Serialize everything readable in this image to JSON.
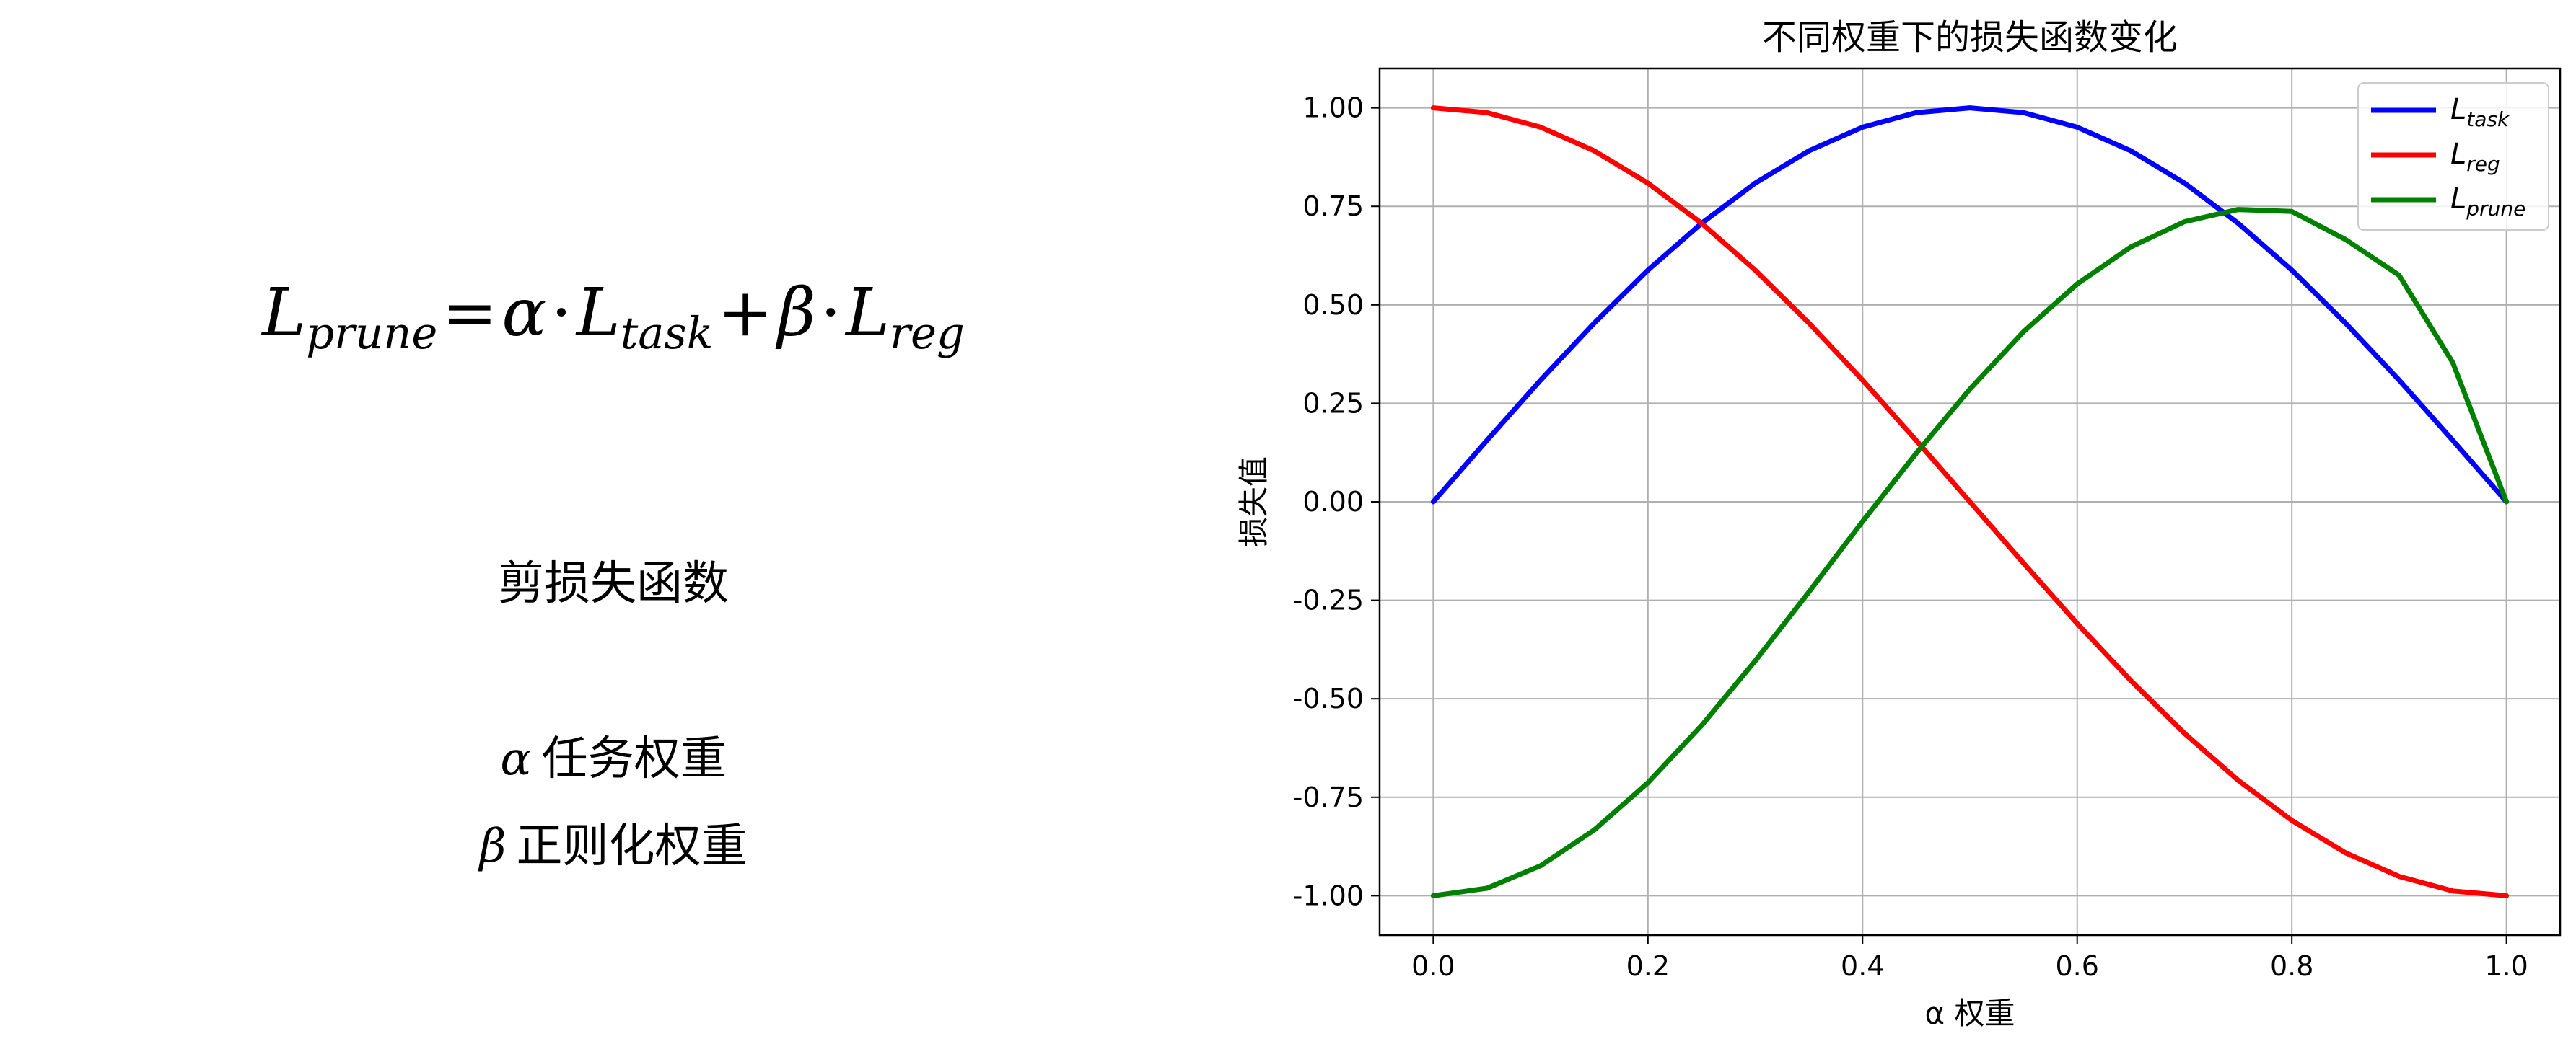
{
  "left_panel": {
    "formula": {
      "lhs_symbol": "L",
      "lhs_sub": "prune",
      "eq": "=",
      "alpha": "α",
      "dot": "·",
      "task_symbol": "L",
      "task_sub": "task",
      "plus": "+",
      "beta": "β",
      "reg_symbol": "L",
      "reg_sub": "reg"
    },
    "title": "剪损失函数",
    "alpha_desc": {
      "symbol": "α",
      "text": "任务权重"
    },
    "beta_desc": {
      "symbol": "β",
      "text": "正则化权重"
    }
  },
  "chart_data": {
    "type": "line",
    "title": "不同权重下的损失函数变化",
    "xlabel": "α 权重",
    "ylabel": "损失值",
    "xlim": [
      -0.05,
      1.05
    ],
    "ylim": [
      -1.1,
      1.1
    ],
    "xticks": [
      0.0,
      0.2,
      0.4,
      0.6,
      0.8,
      1.0
    ],
    "xtick_labels": [
      "0.0",
      "0.2",
      "0.4",
      "0.6",
      "0.8",
      "1.0"
    ],
    "yticks": [
      1.0,
      0.75,
      0.5,
      0.25,
      0.0,
      -0.25,
      -0.5,
      -0.75,
      -1.0
    ],
    "ytick_labels": [
      "1.00",
      "0.75",
      "0.50",
      "0.25",
      "0.00",
      "-0.25",
      "-0.50",
      "-0.75",
      "-1.00"
    ],
    "grid": true,
    "legend_position": "top-right",
    "x": [
      0.0,
      0.05,
      0.1,
      0.15,
      0.2,
      0.25,
      0.3,
      0.35,
      0.4,
      0.45,
      0.5,
      0.55,
      0.6,
      0.65,
      0.7,
      0.75,
      0.8,
      0.85,
      0.9,
      0.95,
      1.0
    ],
    "series": [
      {
        "name": "L_task",
        "label_main": "L",
        "label_sub": "task",
        "color": "#0000ff",
        "values": [
          0.0,
          0.156,
          0.309,
          0.454,
          0.588,
          0.707,
          0.809,
          0.891,
          0.951,
          0.988,
          1.0,
          0.988,
          0.951,
          0.891,
          0.809,
          0.707,
          0.588,
          0.454,
          0.309,
          0.156,
          0.0
        ]
      },
      {
        "name": "L_reg",
        "label_main": "L",
        "label_sub": "reg",
        "color": "#ff0000",
        "values": [
          1.0,
          0.988,
          0.951,
          0.891,
          0.809,
          0.707,
          0.588,
          0.454,
          0.309,
          0.156,
          0.0,
          -0.156,
          -0.309,
          -0.454,
          -0.588,
          -0.707,
          -0.809,
          -0.891,
          -0.951,
          -0.988,
          -1.0
        ]
      },
      {
        "name": "L_prune",
        "label_main": "L",
        "label_sub": "prune",
        "color": "#008000",
        "values": [
          -1.0,
          -0.981,
          -0.924,
          -0.833,
          -0.713,
          -0.568,
          -0.404,
          -0.229,
          -0.05,
          0.123,
          0.286,
          0.432,
          0.553,
          0.647,
          0.711,
          0.742,
          0.737,
          0.666,
          0.575,
          0.353,
          0.0
        ]
      }
    ]
  }
}
